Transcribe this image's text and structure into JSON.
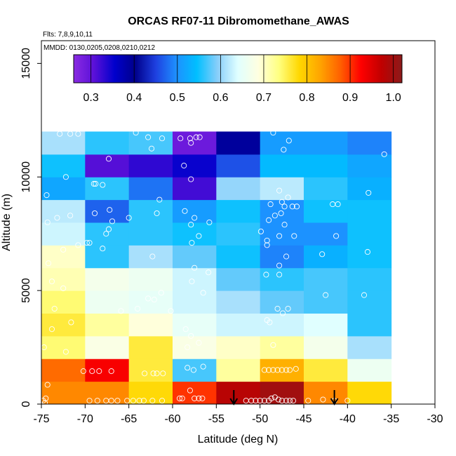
{
  "chart_data": {
    "type": "heatmap",
    "title": "ORCAS RF07-11 Dibromomethane_AWAS",
    "flights_note": "Flts: 7,8,9,10,11",
    "dates_note": "MMDD: 0130,0205,0208,0210,0212",
    "xlabel": "Latitude (deg N)",
    "ylabel": "Altitude (m)",
    "xlim": [
      -75,
      -30
    ],
    "ylim": [
      0,
      16000
    ],
    "x_ticks": [
      -75,
      -70,
      -65,
      -60,
      -55,
      -50,
      -45,
      -40,
      -35,
      -30
    ],
    "x_tick_labels": [
      "-75",
      "-70",
      "-65",
      "-60",
      "-55",
      "-50",
      "-45",
      "-40",
      "-35",
      "-30"
    ],
    "y_ticks": [
      0,
      5000,
      10000,
      15000
    ],
    "y_tick_labels": [
      "0",
      "5000",
      "10000",
      "15000"
    ],
    "colorbar": {
      "range": [
        0.26,
        1.02
      ],
      "ticks": [
        0.3,
        0.4,
        0.5,
        0.6,
        0.7,
        0.8,
        0.9,
        1.0
      ],
      "tick_labels": [
        "0.3",
        "0.4",
        "0.5",
        "0.6",
        "0.7",
        "0.8",
        "0.9",
        "1.0"
      ],
      "colors": [
        "#8a2be2",
        "#5a10d8",
        "#0000cc",
        "#00008b",
        "#1e40e0",
        "#1e90ff",
        "#00bfff",
        "#87cefa",
        "#e0ffff",
        "#ffffe0",
        "#ffff80",
        "#ffd700",
        "#ffa500",
        "#ff6000",
        "#ff0000",
        "#c00000",
        "#8b1a1a"
      ]
    },
    "bins": {
      "lat_edges": [
        -75,
        -70,
        -65,
        -60,
        -55,
        -50,
        -45,
        -40,
        -35
      ],
      "alt_edges": [
        0,
        1000,
        2000,
        3000,
        4000,
        5000,
        6000,
        7000,
        8000,
        9000,
        10000,
        11000,
        12000
      ],
      "values": [
        [
          0.85,
          0.85,
          0.78,
          0.9,
          0.98,
          1.0,
          0.85,
          0.78
        ],
        [
          0.87,
          0.93,
          0.76,
          0.57,
          0.72,
          0.82,
          0.76,
          0.66
        ],
        [
          0.74,
          0.68,
          0.76,
          0.68,
          0.7,
          0.72,
          0.67,
          0.61
        ],
        [
          0.76,
          0.72,
          0.69,
          0.65,
          0.63,
          0.63,
          0.64,
          0.56
        ],
        [
          0.74,
          0.66,
          0.65,
          0.63,
          0.61,
          0.58,
          0.57,
          0.56
        ],
        [
          0.71,
          0.67,
          0.66,
          0.63,
          0.58,
          0.56,
          0.57,
          0.56
        ],
        [
          0.7,
          0.56,
          0.61,
          0.58,
          0.55,
          0.49,
          0.53,
          0.55
        ],
        [
          0.63,
          0.56,
          0.56,
          0.55,
          0.56,
          0.5,
          0.5,
          0.55
        ],
        [
          0.62,
          0.47,
          0.56,
          0.51,
          0.55,
          0.5,
          0.55,
          0.55
        ],
        [
          0.52,
          0.56,
          0.48,
          0.32,
          0.6,
          0.62,
          0.56,
          0.53
        ],
        [
          0.55,
          0.31,
          0.33,
          0.35,
          0.46,
          0.54,
          0.54,
          0.52
        ],
        [
          0.61,
          0.56,
          0.57,
          0.29,
          0.39,
          0.51,
          0.51,
          0.49
        ]
      ]
    },
    "arrows_lat": [
      -53,
      -41.5
    ],
    "sample_points": [
      [
        -74.5,
        250
      ],
      [
        -74.8,
        150
      ],
      [
        -74.6,
        50
      ],
      [
        -74.3,
        850
      ],
      [
        -74.7,
        2500
      ],
      [
        -73.8,
        3300
      ],
      [
        -72.2,
        2300
      ],
      [
        -71.6,
        3600
      ],
      [
        -73.5,
        4200
      ],
      [
        -72.5,
        5100
      ],
      [
        -73.8,
        5400
      ],
      [
        -74.2,
        6200
      ],
      [
        -72.5,
        6800
      ],
      [
        -70.8,
        7000
      ],
      [
        -74.3,
        8000
      ],
      [
        -73.2,
        8200
      ],
      [
        -71.7,
        8300
      ],
      [
        -74.4,
        9200
      ],
      [
        -72.2,
        10000
      ],
      [
        -70.8,
        11900
      ],
      [
        -71.7,
        11900
      ],
      [
        -72.9,
        11900
      ],
      [
        -69.5,
        150
      ],
      [
        -68.6,
        150
      ],
      [
        -67.6,
        150
      ],
      [
        -67.0,
        150
      ],
      [
        -66.3,
        150
      ],
      [
        -70.2,
        1450
      ],
      [
        -69.2,
        1450
      ],
      [
        -68.4,
        1450
      ],
      [
        -67.0,
        1450
      ],
      [
        -69.8,
        7100
      ],
      [
        -69.5,
        7100
      ],
      [
        -68.0,
        6850
      ],
      [
        -67.6,
        7500
      ],
      [
        -67.3,
        7700
      ],
      [
        -68.9,
        8400
      ],
      [
        -67.2,
        8550
      ],
      [
        -66.9,
        8050
      ],
      [
        -69.0,
        9700
      ],
      [
        -68.8,
        9700
      ],
      [
        -68.0,
        9650
      ],
      [
        -67.3,
        10800
      ],
      [
        -65.2,
        150
      ],
      [
        -64.5,
        150
      ],
      [
        -63.8,
        150
      ],
      [
        -63.3,
        150
      ],
      [
        -62.3,
        150
      ],
      [
        -61.2,
        150
      ],
      [
        -65.0,
        8200
      ],
      [
        -64.2,
        11950
      ],
      [
        -62.8,
        11750
      ],
      [
        -62.4,
        11250
      ],
      [
        -61.2,
        11700
      ],
      [
        -61.5,
        9000
      ],
      [
        -61.8,
        8400
      ],
      [
        -62.3,
        6500
      ],
      [
        -64.0,
        4200
      ],
      [
        -65.9,
        4100
      ],
      [
        -62.8,
        4650
      ],
      [
        -61.3,
        4900
      ],
      [
        -60.2,
        4100
      ],
      [
        -62.1,
        4600
      ],
      [
        -63.2,
        1350
      ],
      [
        -62.2,
        1350
      ],
      [
        -61.8,
        1350
      ],
      [
        -61.1,
        1350
      ],
      [
        -59.2,
        250
      ],
      [
        -58.9,
        250
      ],
      [
        -57.5,
        250
      ],
      [
        -57.0,
        250
      ],
      [
        -56.6,
        250
      ],
      [
        -59.1,
        11700
      ],
      [
        -58.0,
        11700
      ],
      [
        -57.3,
        11750
      ],
      [
        -56.9,
        11750
      ],
      [
        -57.9,
        11500
      ],
      [
        -58.7,
        10500
      ],
      [
        -57.9,
        9900
      ],
      [
        -57.5,
        8200
      ],
      [
        -57.9,
        7900
      ],
      [
        -58.6,
        8500
      ],
      [
        -57.8,
        7100
      ],
      [
        -57.0,
        7400
      ],
      [
        -55.8,
        8000
      ],
      [
        -57.5,
        6000
      ],
      [
        -55.9,
        5800
      ],
      [
        -57.8,
        5400
      ],
      [
        -56.5,
        4900
      ],
      [
        -58.5,
        3300
      ],
      [
        -57.9,
        3000
      ],
      [
        -58.3,
        2500
      ],
      [
        -57.0,
        2700
      ],
      [
        -58.3,
        1600
      ],
      [
        -57.6,
        1500
      ],
      [
        -56.5,
        1650
      ],
      [
        -58.0,
        600
      ],
      [
        -51.6,
        150
      ],
      [
        -51.0,
        150
      ],
      [
        -50.5,
        150
      ],
      [
        -50.0,
        150
      ],
      [
        -49.5,
        150
      ],
      [
        -49.0,
        150
      ],
      [
        -48.7,
        250
      ],
      [
        -48.3,
        300
      ],
      [
        -47.9,
        200
      ],
      [
        -47.5,
        150
      ],
      [
        -47.0,
        150
      ],
      [
        -46.6,
        150
      ],
      [
        -46.2,
        150
      ],
      [
        -49.5,
        1500
      ],
      [
        -49.0,
        1500
      ],
      [
        -48.5,
        1500
      ],
      [
        -48.0,
        1500
      ],
      [
        -47.5,
        1500
      ],
      [
        -47.0,
        1500
      ],
      [
        -46.6,
        1500
      ],
      [
        -45.9,
        1550
      ],
      [
        -49.2,
        3700
      ],
      [
        -48.5,
        2600
      ],
      [
        -48.9,
        3600
      ],
      [
        -48.0,
        4200
      ],
      [
        -47.4,
        4000
      ],
      [
        -46.8,
        4200
      ],
      [
        -49.3,
        5700
      ],
      [
        -47.8,
        5700
      ],
      [
        -47.8,
        6100
      ],
      [
        -47.0,
        6500
      ],
      [
        -49.2,
        7000
      ],
      [
        -49.9,
        7600
      ],
      [
        -47.8,
        7400
      ],
      [
        -49.0,
        8100
      ],
      [
        -48.8,
        8800
      ],
      [
        -47.6,
        8400
      ],
      [
        -46.3,
        8700
      ],
      [
        -45.8,
        8700
      ],
      [
        -47.2,
        8700
      ],
      [
        -47.5,
        8900
      ],
      [
        -46.8,
        9100
      ],
      [
        -46.1,
        7400
      ],
      [
        -47.2,
        7900
      ],
      [
        -48.3,
        8300
      ],
      [
        -47.3,
        11200
      ],
      [
        -46.7,
        11600
      ],
      [
        -48.5,
        11950
      ],
      [
        -49.2,
        7200
      ],
      [
        -47.8,
        9400
      ],
      [
        -44.5,
        150
      ],
      [
        -41.5,
        150
      ],
      [
        -42.8,
        200
      ],
      [
        -40.0,
        150
      ],
      [
        -42.5,
        4800
      ],
      [
        -42.9,
        6600
      ],
      [
        -41.3,
        7400
      ],
      [
        -41.7,
        8800
      ],
      [
        -41.1,
        8800
      ],
      [
        -38.1,
        4800
      ],
      [
        -37.7,
        6700
      ],
      [
        -37.6,
        9300
      ],
      [
        -35.8,
        11000
      ]
    ]
  }
}
